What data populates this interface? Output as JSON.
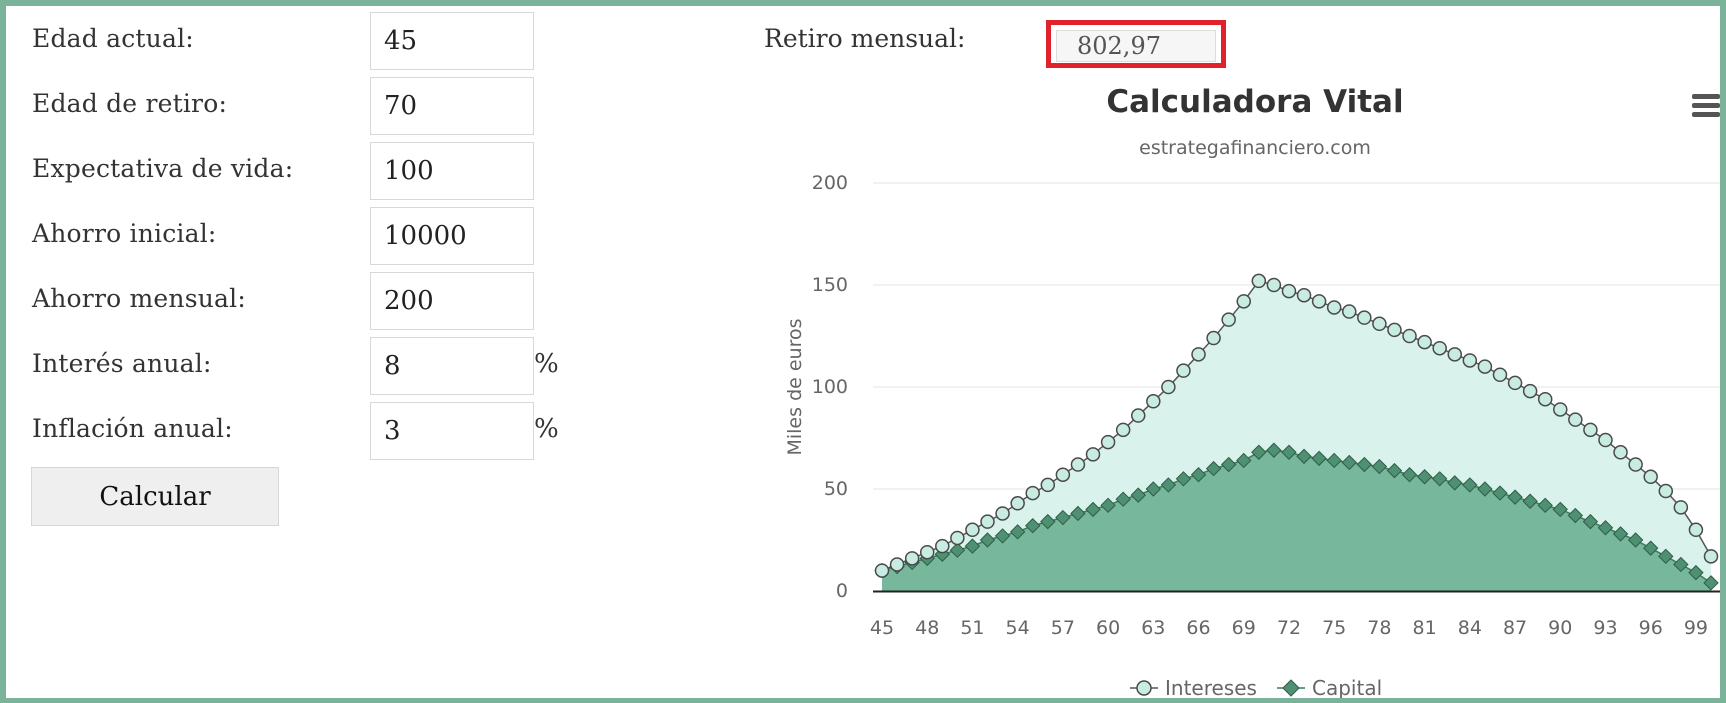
{
  "form": {
    "fields": [
      {
        "label": "Edad actual:",
        "value": "45",
        "suffix": ""
      },
      {
        "label": "Edad de retiro:",
        "value": "70",
        "suffix": ""
      },
      {
        "label": "Expectativa de vida:",
        "value": "100",
        "suffix": ""
      },
      {
        "label": "Ahorro inicial:",
        "value": "10000",
        "suffix": ""
      },
      {
        "label": "Ahorro mensual:",
        "value": "200",
        "suffix": ""
      },
      {
        "label": "Interés anual:",
        "value": "8",
        "suffix": "%"
      },
      {
        "label": "Inflación anual:",
        "value": "3",
        "suffix": "%"
      }
    ],
    "calculate_label": "Calcular"
  },
  "result": {
    "label": "Retiro mensual:",
    "value": "802,97",
    "highlight_color": "#e0222d"
  },
  "chart": {
    "title": "Calculadora Vital",
    "subtitle": "estrategafinanciero.com",
    "menu_icon": "hamburger-menu-icon"
  },
  "colors": {
    "frame": "#7bb39a",
    "intereses_fill": "#d9f3ec",
    "capital_fill": "#77b79b",
    "capital_marker": "#4f8f72"
  },
  "chart_data": {
    "type": "area",
    "ylabel": "Miles de euros",
    "xlabel": "",
    "ylim": [
      0,
      200
    ],
    "yticks": [
      0,
      50,
      100,
      150,
      200
    ],
    "xticks": [
      "45",
      "48",
      "51",
      "54",
      "57",
      "60",
      "63",
      "66",
      "69",
      "72",
      "75",
      "78",
      "81",
      "84",
      "87",
      "90",
      "93",
      "96",
      "99"
    ],
    "grid": true,
    "legend": "bottom",
    "x": [
      45,
      46,
      47,
      48,
      49,
      50,
      51,
      52,
      53,
      54,
      55,
      56,
      57,
      58,
      59,
      60,
      61,
      62,
      63,
      64,
      65,
      66,
      67,
      68,
      69,
      70,
      71,
      72,
      73,
      74,
      75,
      76,
      77,
      78,
      79,
      80,
      81,
      82,
      83,
      84,
      85,
      86,
      87,
      88,
      89,
      90,
      91,
      92,
      93,
      94,
      95,
      96,
      97,
      98,
      99,
      100
    ],
    "series": [
      {
        "name": "Intereses",
        "values": [
          10,
          13,
          16,
          19,
          22,
          26,
          30,
          34,
          38,
          43,
          48,
          52,
          57,
          62,
          67,
          73,
          79,
          86,
          93,
          100,
          108,
          116,
          124,
          133,
          142,
          152,
          150,
          147,
          145,
          142,
          139,
          137,
          134,
          131,
          128,
          125,
          122,
          119,
          116,
          113,
          110,
          106,
          102,
          98,
          94,
          89,
          84,
          79,
          74,
          68,
          62,
          56,
          49,
          41,
          30,
          17
        ]
      },
      {
        "name": "Capital",
        "values": [
          10,
          12,
          14,
          16,
          18,
          20,
          22,
          25,
          27,
          29,
          32,
          34,
          36,
          38,
          40,
          42,
          45,
          47,
          50,
          52,
          55,
          57,
          60,
          62,
          64,
          68,
          69,
          68,
          66,
          65,
          64,
          63,
          62,
          61,
          59,
          57,
          56,
          55,
          53,
          52,
          50,
          48,
          46,
          44,
          42,
          40,
          37,
          34,
          31,
          28,
          25,
          21,
          17,
          13,
          9,
          4
        ]
      }
    ]
  }
}
